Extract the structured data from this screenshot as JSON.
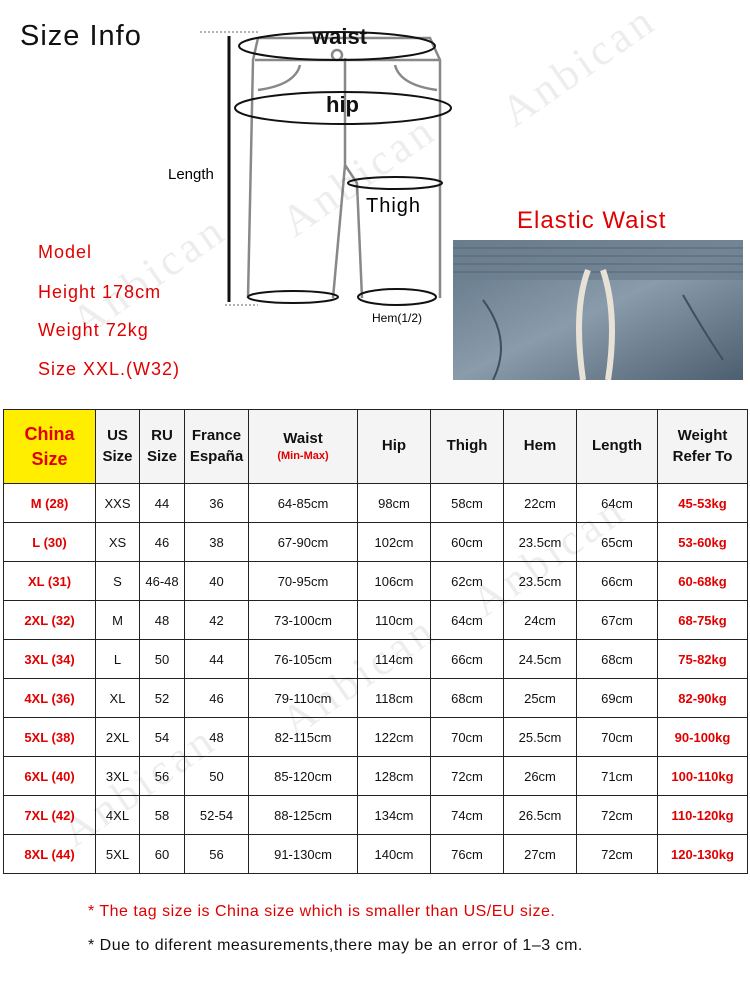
{
  "title": "Size Info",
  "watermark": "Anbican",
  "diagram": {
    "waist": "waist",
    "hip": "hip",
    "length": "Length",
    "thigh": "Thigh",
    "hem": "Hem(1/2)"
  },
  "model": {
    "heading": "Model",
    "height": "Height 178cm",
    "weight": "Weight 72kg",
    "size": "Size XXL.(W32)"
  },
  "elastic_label": "Elastic Waist",
  "colors": {
    "accent_red": "#e00000",
    "header_yellow": "#ffee00"
  },
  "table": {
    "headers": {
      "china": [
        "China",
        "Size"
      ],
      "us": [
        "US",
        "Size"
      ],
      "ru": [
        "RU",
        "Size"
      ],
      "fr": [
        "France",
        "España"
      ],
      "waist": "Waist",
      "waist_sub": "(Min-Max)",
      "hip": "Hip",
      "thigh": "Thigh",
      "hem": "Hem",
      "length": "Length",
      "weight": [
        "Weight",
        "Refer To"
      ]
    },
    "rows": [
      [
        "M (28)",
        "XXS",
        "44",
        "36",
        "64-85cm",
        "98cm",
        "58cm",
        "22cm",
        "64cm",
        "45-53kg"
      ],
      [
        "L (30)",
        "XS",
        "46",
        "38",
        "67-90cm",
        "102cm",
        "60cm",
        "23.5cm",
        "65cm",
        "53-60kg"
      ],
      [
        "XL (31)",
        "S",
        "46-48",
        "40",
        "70-95cm",
        "106cm",
        "62cm",
        "23.5cm",
        "66cm",
        "60-68kg"
      ],
      [
        "2XL (32)",
        "M",
        "48",
        "42",
        "73-100cm",
        "110cm",
        "64cm",
        "24cm",
        "67cm",
        "68-75kg"
      ],
      [
        "3XL (34)",
        "L",
        "50",
        "44",
        "76-105cm",
        "114cm",
        "66cm",
        "24.5cm",
        "68cm",
        "75-82kg"
      ],
      [
        "4XL (36)",
        "XL",
        "52",
        "46",
        "79-110cm",
        "118cm",
        "68cm",
        "25cm",
        "69cm",
        "82-90kg"
      ],
      [
        "5XL (38)",
        "2XL",
        "54",
        "48",
        "82-115cm",
        "122cm",
        "70cm",
        "25.5cm",
        "70cm",
        "90-100kg"
      ],
      [
        "6XL (40)",
        "3XL",
        "56",
        "50",
        "85-120cm",
        "128cm",
        "72cm",
        "26cm",
        "71cm",
        "100-110kg"
      ],
      [
        "7XL (42)",
        "4XL",
        "58",
        "52-54",
        "88-125cm",
        "134cm",
        "74cm",
        "26.5cm",
        "72cm",
        "110-120kg"
      ],
      [
        "8XL (44)",
        "5XL",
        "60",
        "56",
        "91-130cm",
        "140cm",
        "76cm",
        "27cm",
        "72cm",
        "120-130kg"
      ]
    ]
  },
  "notes": [
    "* The tag size is China size which is smaller than US/EU size.",
    "* Due to diferent measurements,there may be an error of 1–3 cm."
  ]
}
